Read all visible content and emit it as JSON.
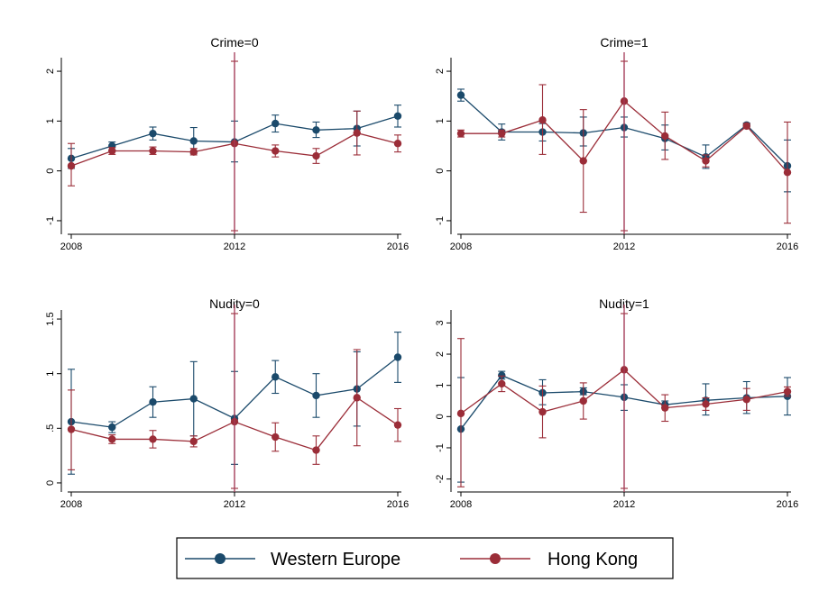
{
  "colors": {
    "western_europe": "#1b4a6b",
    "hong_kong": "#9b2d38",
    "vline": "#a33a58"
  },
  "legend": {
    "series": [
      {
        "name": "Western Europe",
        "color": "#1b4a6b"
      },
      {
        "name": "Hong Kong",
        "color": "#9b2d38"
      }
    ]
  },
  "chart_data": [
    {
      "type": "line",
      "title": "Crime=0",
      "x": [
        2008,
        2009,
        2010,
        2011,
        2012,
        2013,
        2014,
        2015,
        2016
      ],
      "xticks": [
        "2008",
        "2012",
        "2016"
      ],
      "xlim": [
        2008,
        2016
      ],
      "ylim": [
        -1.2,
        2.2
      ],
      "yticks": [
        -1,
        0,
        1,
        2
      ],
      "yticklabels": [
        "-1",
        "0",
        "1",
        "2"
      ],
      "vline": 2012,
      "series": [
        {
          "name": "Western Europe",
          "values": [
            0.25,
            0.5,
            0.75,
            0.6,
            0.58,
            0.95,
            0.82,
            0.85,
            1.1
          ],
          "lower": [
            0.05,
            0.42,
            0.62,
            0.35,
            0.18,
            0.78,
            0.67,
            0.5,
            0.88
          ],
          "upper": [
            0.45,
            0.58,
            0.88,
            0.87,
            1.0,
            1.12,
            0.98,
            1.2,
            1.32
          ]
        },
        {
          "name": "Hong Kong",
          "values": [
            0.1,
            0.4,
            0.4,
            0.38,
            0.55,
            0.4,
            0.3,
            0.76,
            0.55
          ],
          "lower": [
            -0.3,
            0.33,
            0.33,
            0.32,
            -1.3,
            0.28,
            0.15,
            0.32,
            0.38
          ],
          "upper": [
            0.55,
            0.47,
            0.48,
            0.45,
            2.2,
            0.52,
            0.45,
            1.2,
            0.72
          ]
        }
      ]
    },
    {
      "type": "line",
      "title": "Crime=1",
      "x": [
        2008,
        2009,
        2010,
        2011,
        2012,
        2013,
        2014,
        2015,
        2016
      ],
      "xticks": [
        "2008",
        "2012",
        "2016"
      ],
      "xlim": [
        2008,
        2016
      ],
      "ylim": [
        -1.2,
        2.2
      ],
      "yticks": [
        -1,
        0,
        1,
        2
      ],
      "yticklabels": [
        "-1",
        "0",
        "1",
        "2"
      ],
      "vline": 2012,
      "series": [
        {
          "name": "Western Europe",
          "values": [
            1.52,
            0.78,
            0.78,
            0.76,
            0.87,
            0.65,
            0.28,
            0.92,
            0.1
          ],
          "lower": [
            1.4,
            0.62,
            0.6,
            0.5,
            0.68,
            0.42,
            0.05,
            0.88,
            -0.42
          ],
          "upper": [
            1.64,
            0.94,
            0.95,
            1.08,
            1.08,
            0.92,
            0.52,
            0.96,
            0.62
          ]
        },
        {
          "name": "Hong Kong",
          "values": [
            0.75,
            0.75,
            1.02,
            0.2,
            1.4,
            0.7,
            0.2,
            0.9,
            -0.03
          ],
          "lower": [
            0.68,
            0.68,
            0.33,
            -0.83,
            -1.3,
            0.23,
            0.08,
            0.85,
            -1.05
          ],
          "upper": [
            0.82,
            0.82,
            1.73,
            1.23,
            2.2,
            1.18,
            0.32,
            0.95,
            0.98
          ]
        }
      ]
    },
    {
      "type": "line",
      "title": "Nudity=0",
      "x": [
        2008,
        2009,
        2010,
        2011,
        2012,
        2013,
        2014,
        2015,
        2016
      ],
      "xticks": [
        "2008",
        "2012",
        "2016"
      ],
      "xlim": [
        2008,
        2016
      ],
      "ylim": [
        -0.05,
        1.55
      ],
      "yticks": [
        0,
        0.5,
        1,
        1.5
      ],
      "yticklabels": [
        "0",
        ".5",
        "1",
        "1.5"
      ],
      "vline": 2012,
      "series": [
        {
          "name": "Western Europe",
          "values": [
            0.56,
            0.51,
            0.74,
            0.77,
            0.59,
            0.97,
            0.8,
            0.86,
            1.15
          ],
          "lower": [
            0.08,
            0.46,
            0.6,
            0.43,
            0.17,
            0.82,
            0.6,
            0.52,
            0.92
          ],
          "upper": [
            1.04,
            0.56,
            0.88,
            1.11,
            1.02,
            1.12,
            1.0,
            1.2,
            1.38
          ]
        },
        {
          "name": "Hong Kong",
          "values": [
            0.49,
            0.4,
            0.4,
            0.38,
            0.56,
            0.42,
            0.3,
            0.78,
            0.53
          ],
          "lower": [
            0.12,
            0.36,
            0.32,
            0.33,
            -0.05,
            0.29,
            0.17,
            0.34,
            0.38
          ],
          "upper": [
            0.85,
            0.44,
            0.48,
            0.43,
            1.55,
            0.55,
            0.43,
            1.22,
            0.68
          ]
        }
      ]
    },
    {
      "type": "line",
      "title": "Nudity=1",
      "x": [
        2008,
        2009,
        2010,
        2011,
        2012,
        2013,
        2014,
        2015,
        2016
      ],
      "xticks": [
        "2008",
        "2012",
        "2016"
      ],
      "xlim": [
        2008,
        2016
      ],
      "ylim": [
        -2.3,
        3.3
      ],
      "yticks": [
        -2,
        -1,
        0,
        1,
        2,
        3
      ],
      "yticklabels": [
        "-2",
        "-1",
        "0",
        "1",
        "2",
        "3"
      ],
      "vline": 2012,
      "series": [
        {
          "name": "Western Europe",
          "values": [
            -0.4,
            1.32,
            0.76,
            0.8,
            0.62,
            0.38,
            0.52,
            0.6,
            0.65
          ],
          "lower": [
            -2.1,
            1.2,
            0.38,
            0.7,
            0.2,
            0.28,
            0.05,
            0.1,
            0.05
          ],
          "upper": [
            1.25,
            1.45,
            1.18,
            0.92,
            1.02,
            0.5,
            1.05,
            1.12,
            1.25
          ]
        },
        {
          "name": "Hong Kong",
          "values": [
            0.1,
            1.05,
            0.15,
            0.5,
            1.5,
            0.28,
            0.4,
            0.55,
            0.8
          ],
          "lower": [
            -2.25,
            0.8,
            -0.68,
            -0.08,
            -2.3,
            -0.15,
            0.2,
            0.2,
            0.65
          ],
          "upper": [
            2.5,
            1.3,
            0.98,
            1.08,
            3.3,
            0.7,
            0.6,
            0.9,
            0.95
          ]
        }
      ]
    }
  ]
}
